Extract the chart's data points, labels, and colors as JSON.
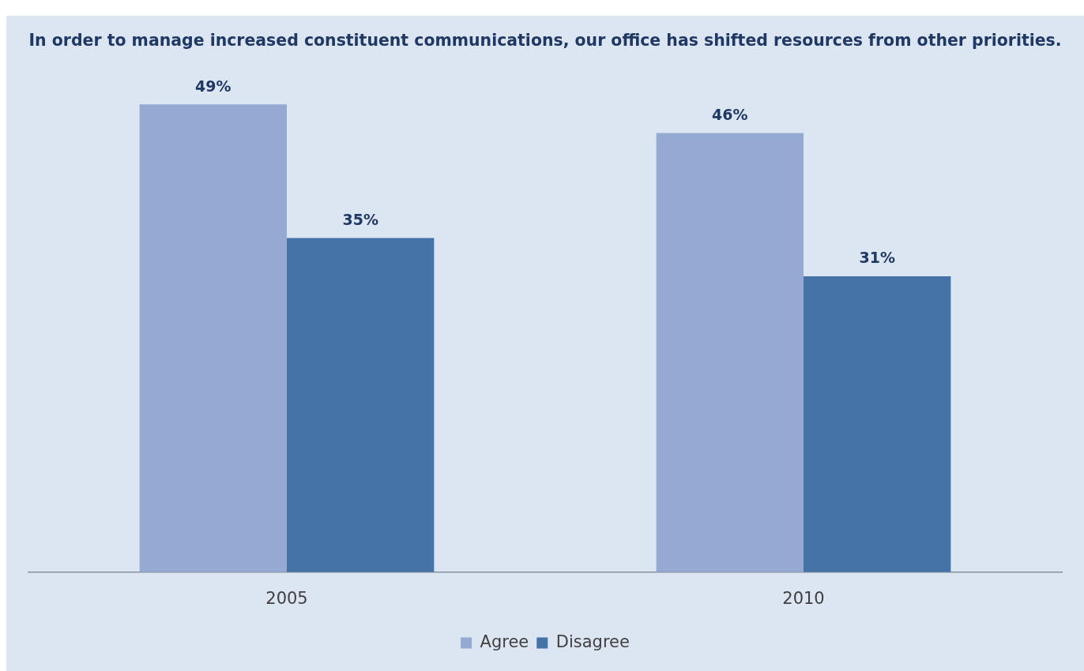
{
  "chart_data": {
    "type": "bar",
    "title": "In order to manage increased constituent communications, our office has shifted resources from other priorities.",
    "categories": [
      "2005",
      "2010"
    ],
    "series": [
      {
        "name": "Agree",
        "color": "#95aad2",
        "values": [
          49,
          46
        ],
        "value_labels": [
          "49%",
          "46%"
        ]
      },
      {
        "name": "Disagree",
        "color": "#4572a7",
        "values": [
          35,
          31
        ],
        "value_labels": [
          "35%",
          "31%"
        ]
      }
    ],
    "legend": "bottom",
    "grid": false,
    "tick_labels": "x"
  }
}
